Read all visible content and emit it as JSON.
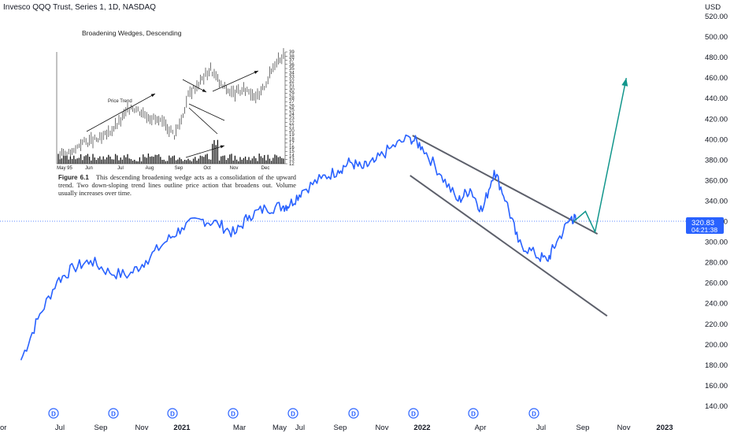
{
  "header": {
    "title": "Invesco QQQ Trust, Series 1, 1D, NASDAQ",
    "currency": "USD"
  },
  "price_badge": {
    "price": "320.83",
    "countdown": "04:21:38",
    "color": "#2962ff"
  },
  "colors": {
    "price_line": "#2962ff",
    "trendline": "#5d606b",
    "projection": "#12968c",
    "dividend": "#2962ff"
  },
  "dividend_markers": {
    "label": "D",
    "count": 9
  },
  "chart_data": {
    "type": "line",
    "series": [
      {
        "name": "",
        "values": [
          [
            2020.33,
            185
          ],
          [
            2020.4,
            225
          ],
          [
            2020.48,
            262
          ],
          [
            2020.55,
            275
          ],
          [
            2020.62,
            282
          ],
          [
            2020.7,
            270
          ],
          [
            2020.78,
            268
          ],
          [
            2020.85,
            282
          ],
          [
            2020.93,
            300
          ],
          [
            2021.0,
            314
          ],
          [
            2021.08,
            322
          ],
          [
            2021.15,
            318
          ],
          [
            2021.22,
            308
          ],
          [
            2021.28,
            326
          ],
          [
            2021.35,
            333
          ],
          [
            2021.42,
            335
          ],
          [
            2021.45,
            337
          ],
          [
            2021.5,
            350
          ],
          [
            2021.58,
            362
          ],
          [
            2021.65,
            370
          ],
          [
            2021.7,
            378
          ],
          [
            2021.75,
            372
          ],
          [
            2021.8,
            378
          ],
          [
            2021.87,
            392
          ],
          [
            2021.95,
            402
          ],
          [
            2022.0,
            393
          ],
          [
            2022.08,
            365
          ],
          [
            2022.15,
            340
          ],
          [
            2022.2,
            352
          ],
          [
            2022.25,
            330
          ],
          [
            2022.3,
            370
          ],
          [
            2022.35,
            340
          ],
          [
            2022.4,
            300
          ],
          [
            2022.47,
            288
          ],
          [
            2022.52,
            282
          ],
          [
            2022.56,
            300
          ],
          [
            2022.62,
            324
          ],
          [
            2022.64,
            321
          ]
        ]
      }
    ],
    "trendlines": [
      {
        "from": [
          2021.96,
          404
        ],
        "to": [
          2022.73,
          308
        ]
      },
      {
        "from": [
          2021.95,
          365
        ],
        "to": [
          2022.77,
          228
        ]
      }
    ],
    "projection": [
      [
        2022.63,
        320
      ],
      [
        2022.68,
        330
      ],
      [
        2022.72,
        310
      ],
      [
        2022.85,
        460
      ]
    ],
    "y_axis": {
      "ticks": [
        "520.00",
        "500.00",
        "480.00",
        "460.00",
        "440.00",
        "420.00",
        "400.00",
        "380.00",
        "360.00",
        "340.00",
        "320.00",
        "300.00",
        "280.00",
        "260.00",
        "240.00",
        "220.00",
        "200.00",
        "180.00",
        "160.00",
        "140.00"
      ],
      "range": [
        133,
        525
      ]
    },
    "x_axis": {
      "ticks": [
        "Jul",
        "Sep",
        "Nov",
        "2021",
        "Mar",
        "May",
        "Jul",
        "Sep",
        "Nov",
        "2022",
        "Apr",
        "Jul",
        "Sep",
        "Nov",
        "2023"
      ]
    },
    "inset": {
      "title": "Broadening Wedges, Descending",
      "annotation": "Price Trend",
      "x_ticks": [
        "May 95",
        "Jun",
        "Jul",
        "Aug",
        "Sep",
        "Oct",
        "Nov",
        "Dec"
      ],
      "y_ticks": [
        "39",
        "38",
        "37",
        "36",
        "35",
        "34",
        "33",
        "32",
        "31",
        "30",
        "29",
        "28",
        "27",
        "26",
        "25",
        "24",
        "23",
        "22",
        "21",
        "20",
        "19",
        "18",
        "17",
        "16",
        "15",
        "14",
        "13",
        "12"
      ],
      "price_range": [
        12,
        39
      ],
      "trend": [
        [
          0,
          14
        ],
        [
          0.1,
          14.5
        ],
        [
          0.15,
          17
        ],
        [
          0.3,
          18
        ],
        [
          0.42,
          22
        ],
        [
          0.5,
          26
        ],
        [
          0.6,
          24
        ],
        [
          0.7,
          22
        ],
        [
          0.75,
          21
        ],
        [
          0.8,
          19
        ],
        [
          0.85,
          23
        ],
        [
          0.9,
          29
        ],
        [
          0.98,
          32
        ],
        [
          1.05,
          35
        ],
        [
          1.12,
          31
        ],
        [
          1.2,
          29
        ],
        [
          1.3,
          30
        ],
        [
          1.38,
          28
        ],
        [
          1.45,
          33
        ],
        [
          1.5,
          37
        ],
        [
          1.54,
          38
        ]
      ],
      "caption_label": "Figure 6.1",
      "caption_text": "This descending broadening wedge acts as a consolidation of the upward trend. Two down-sloping trend lines outline price action that broadens out. Volume usually increases over time."
    }
  }
}
